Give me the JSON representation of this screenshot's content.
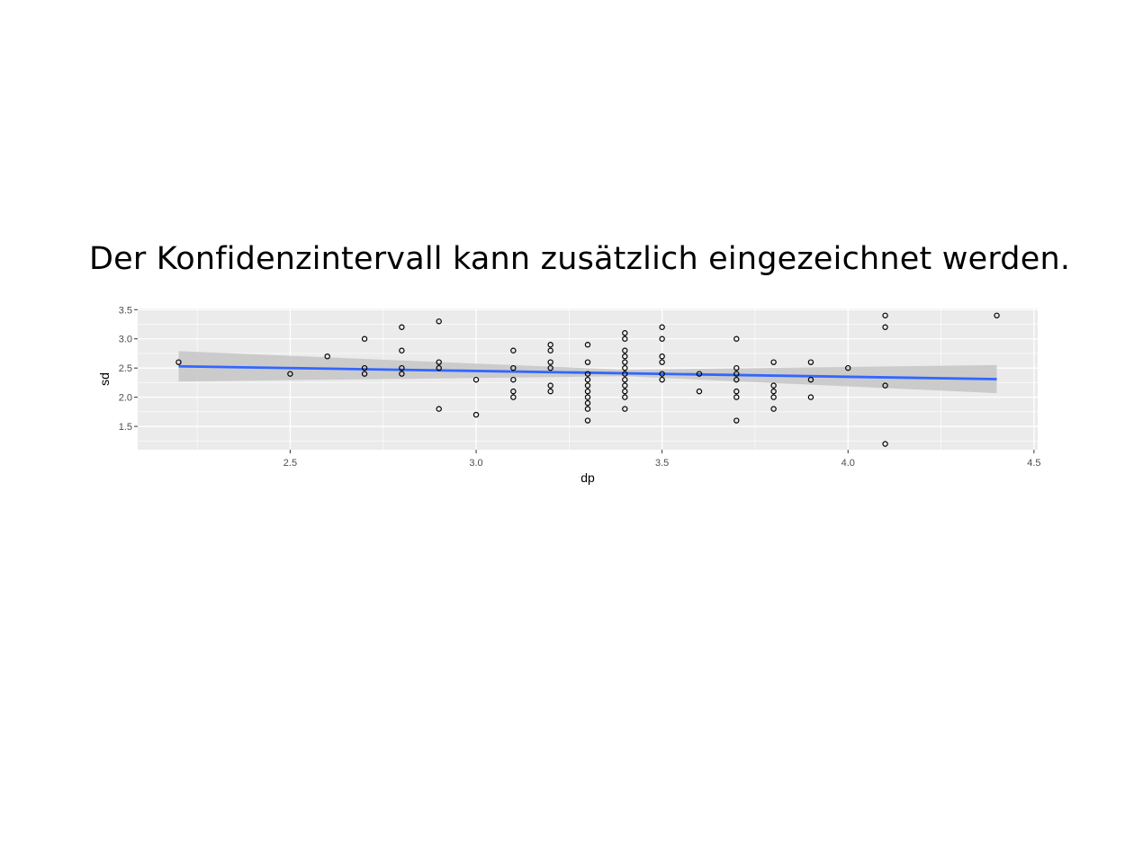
{
  "slide": {
    "title": "Der Konfidenzintervall kann zusätzlich eingezeichnet werden."
  },
  "colors": {
    "panel_background": "#ebebeb",
    "grid_major": "#ffffff",
    "confidence_band": "#c8c8c8",
    "fit_line": "#3366ff",
    "point_stroke": "#000000"
  },
  "chart_data": {
    "type": "scatter",
    "xlabel": "dp",
    "ylabel": "sd",
    "xlim": [
      2.09,
      4.51
    ],
    "ylim": [
      1.1,
      3.52
    ],
    "x_ticks": [
      2.5,
      3.0,
      3.5,
      4.0,
      4.5
    ],
    "x_tick_labels": [
      "2.5",
      "3.0",
      "3.5",
      "4.0",
      "4.5"
    ],
    "y_ticks": [
      1.5,
      2.0,
      2.5,
      3.0,
      3.5
    ],
    "y_tick_labels": [
      "1.5",
      "2.0",
      "2.5",
      "3.0",
      "3.5"
    ],
    "grid": true,
    "points": [
      [
        2.2,
        2.6
      ],
      [
        2.5,
        2.4
      ],
      [
        2.6,
        2.7
      ],
      [
        2.7,
        3.0
      ],
      [
        2.7,
        2.5
      ],
      [
        2.7,
        2.4
      ],
      [
        2.8,
        3.2
      ],
      [
        2.8,
        2.8
      ],
      [
        2.8,
        2.5
      ],
      [
        2.8,
        2.4
      ],
      [
        2.9,
        3.3
      ],
      [
        2.9,
        2.6
      ],
      [
        2.9,
        2.5
      ],
      [
        2.9,
        1.8
      ],
      [
        3.0,
        2.3
      ],
      [
        3.0,
        1.7
      ],
      [
        3.1,
        2.8
      ],
      [
        3.1,
        2.5
      ],
      [
        3.1,
        2.3
      ],
      [
        3.1,
        2.1
      ],
      [
        3.1,
        2.0
      ],
      [
        3.2,
        2.9
      ],
      [
        3.2,
        2.8
      ],
      [
        3.2,
        2.6
      ],
      [
        3.2,
        2.5
      ],
      [
        3.2,
        2.2
      ],
      [
        3.2,
        2.1
      ],
      [
        3.3,
        2.9
      ],
      [
        3.3,
        2.6
      ],
      [
        3.3,
        2.4
      ],
      [
        3.3,
        2.3
      ],
      [
        3.3,
        2.2
      ],
      [
        3.3,
        2.1
      ],
      [
        3.3,
        2.0
      ],
      [
        3.3,
        1.9
      ],
      [
        3.3,
        1.8
      ],
      [
        3.3,
        1.6
      ],
      [
        3.4,
        3.1
      ],
      [
        3.4,
        3.0
      ],
      [
        3.4,
        2.8
      ],
      [
        3.4,
        2.7
      ],
      [
        3.4,
        2.6
      ],
      [
        3.4,
        2.5
      ],
      [
        3.4,
        2.4
      ],
      [
        3.4,
        2.3
      ],
      [
        3.4,
        2.2
      ],
      [
        3.4,
        2.1
      ],
      [
        3.4,
        2.0
      ],
      [
        3.4,
        1.8
      ],
      [
        3.5,
        3.2
      ],
      [
        3.5,
        3.0
      ],
      [
        3.5,
        2.7
      ],
      [
        3.5,
        2.6
      ],
      [
        3.5,
        2.4
      ],
      [
        3.5,
        2.3
      ],
      [
        3.6,
        2.4
      ],
      [
        3.6,
        2.1
      ],
      [
        3.7,
        3.0
      ],
      [
        3.7,
        2.5
      ],
      [
        3.7,
        2.4
      ],
      [
        3.7,
        2.3
      ],
      [
        3.7,
        2.1
      ],
      [
        3.7,
        2.0
      ],
      [
        3.7,
        1.6
      ],
      [
        3.8,
        2.6
      ],
      [
        3.8,
        2.2
      ],
      [
        3.8,
        2.1
      ],
      [
        3.8,
        2.0
      ],
      [
        3.8,
        1.8
      ],
      [
        3.9,
        2.6
      ],
      [
        3.9,
        2.3
      ],
      [
        3.9,
        2.0
      ],
      [
        4.0,
        2.5
      ],
      [
        4.1,
        3.4
      ],
      [
        4.1,
        3.2
      ],
      [
        4.1,
        2.2
      ],
      [
        4.1,
        1.2
      ],
      [
        4.4,
        3.4
      ]
    ],
    "fit_line": {
      "x": [
        2.2,
        4.4
      ],
      "y": [
        2.53,
        2.31
      ]
    },
    "confidence_band": {
      "x": [
        2.2,
        3.4,
        4.4
      ],
      "lower": [
        2.27,
        2.36,
        2.07
      ],
      "upper": [
        2.79,
        2.47,
        2.55
      ]
    }
  }
}
